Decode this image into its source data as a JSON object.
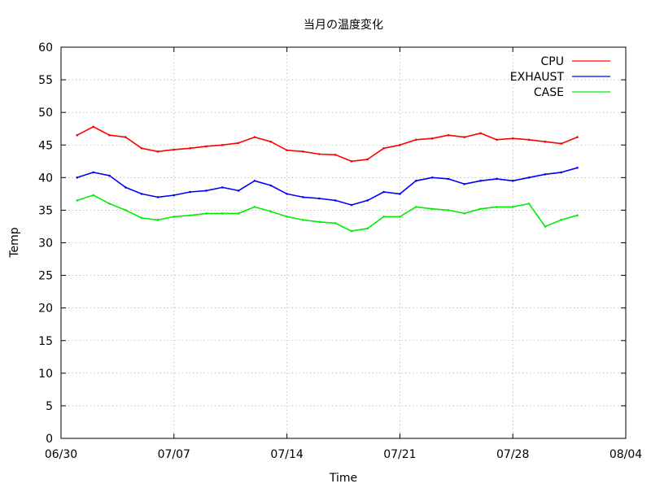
{
  "chart_data": {
    "type": "line",
    "title": "当月の温度変化",
    "xlabel": "Time",
    "ylabel": "Temp",
    "ylim": [
      0,
      60
    ],
    "y_ticks": [
      0,
      5,
      10,
      15,
      20,
      25,
      30,
      35,
      40,
      45,
      50,
      55,
      60
    ],
    "x_range": [
      "06/30",
      "08/04"
    ],
    "x_tick_labels": [
      "06/30",
      "07/07",
      "07/14",
      "07/21",
      "07/28",
      "08/04"
    ],
    "grid": true,
    "legend_position": "top-right",
    "x_dates": [
      "07/01",
      "07/02",
      "07/03",
      "07/04",
      "07/05",
      "07/06",
      "07/07",
      "07/08",
      "07/09",
      "07/10",
      "07/11",
      "07/12",
      "07/13",
      "07/14",
      "07/15",
      "07/16",
      "07/17",
      "07/18",
      "07/19",
      "07/20",
      "07/21",
      "07/22",
      "07/23",
      "07/24",
      "07/25",
      "07/26",
      "07/27",
      "07/28",
      "07/29",
      "07/30",
      "07/31",
      "08/01"
    ],
    "series": [
      {
        "name": "CPU",
        "color": "#ff0000",
        "values": [
          46.5,
          47.8,
          46.5,
          46.2,
          44.5,
          44.0,
          44.3,
          44.5,
          44.8,
          45.0,
          45.3,
          46.2,
          45.5,
          44.2,
          44.0,
          43.6,
          43.5,
          42.5,
          42.8,
          44.5,
          45.0,
          45.8,
          46.0,
          46.5,
          46.2,
          46.8,
          45.8,
          46.0,
          45.8,
          45.5,
          45.2,
          46.2
        ]
      },
      {
        "name": "EXHAUST",
        "color": "#0000ff",
        "values": [
          40.0,
          40.8,
          40.3,
          38.5,
          37.5,
          37.0,
          37.3,
          37.8,
          38.0,
          38.5,
          38.0,
          39.5,
          38.8,
          37.5,
          37.0,
          36.8,
          36.5,
          35.8,
          36.5,
          37.8,
          37.5,
          39.5,
          40.0,
          39.8,
          39.0,
          39.5,
          39.8,
          39.5,
          40.0,
          40.5,
          40.8,
          41.5
        ]
      },
      {
        "name": "CASE",
        "color": "#00ee00",
        "values": [
          36.5,
          37.3,
          36.0,
          35.0,
          33.8,
          33.5,
          34.0,
          34.2,
          34.5,
          34.5,
          34.5,
          35.5,
          34.8,
          34.0,
          33.5,
          33.2,
          33.0,
          31.8,
          32.2,
          34.0,
          34.0,
          35.5,
          35.2,
          35.0,
          34.5,
          35.2,
          35.5,
          35.5,
          36.0,
          32.5,
          33.5,
          34.2
        ]
      }
    ]
  }
}
